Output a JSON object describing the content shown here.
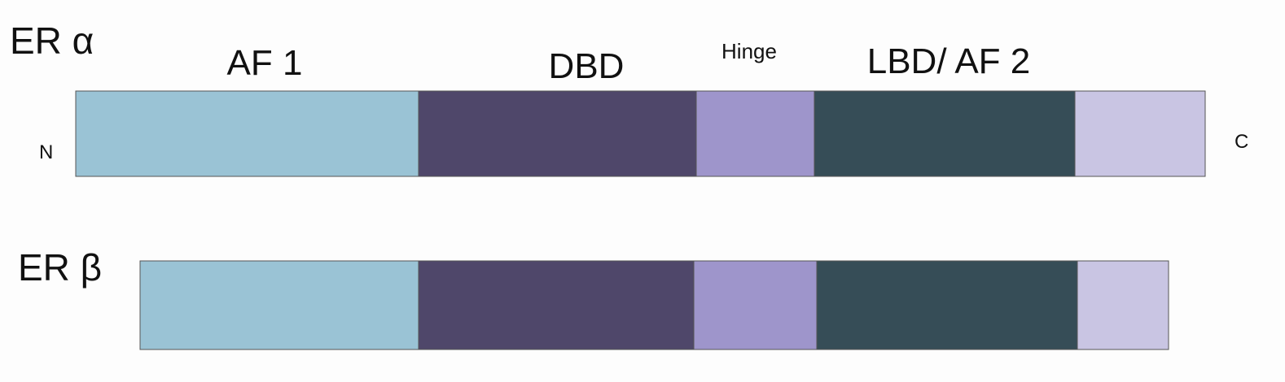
{
  "proteins": [
    {
      "label": "ER α"
    },
    {
      "label": "ER β"
    }
  ],
  "domains": [
    "AF 1",
    "DBD",
    "Hinge",
    "LBD/ AF 2"
  ],
  "termini": {
    "n": "N",
    "c": "C"
  }
}
